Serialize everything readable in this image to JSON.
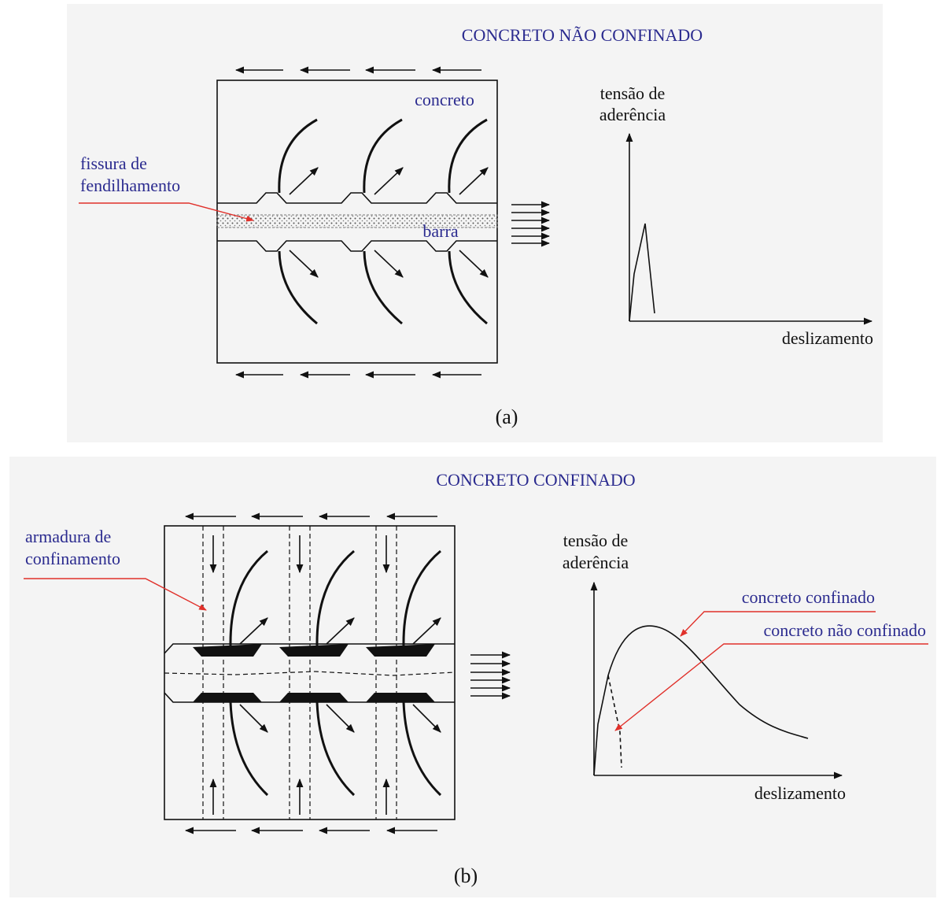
{
  "panels": [
    {
      "title": "CONCRETO NÃO CONFINADO",
      "caption": "(a)",
      "labels": [
        "concreto",
        "fissura de",
        "fendilhamento",
        "barra"
      ],
      "graph": {
        "y_label": [
          "tensão de",
          "aderência"
        ],
        "x_label": "deslizamento"
      }
    },
    {
      "title": "CONCRETO CONFINADO",
      "caption": "(b)",
      "labels": [
        "armadura de",
        "confinamento"
      ],
      "graph": {
        "y_label": [
          "tensão de",
          "aderência"
        ],
        "x_label": "deslizamento",
        "curve_labels": [
          "concreto confinado",
          "concreto não confinado"
        ]
      }
    }
  ]
}
